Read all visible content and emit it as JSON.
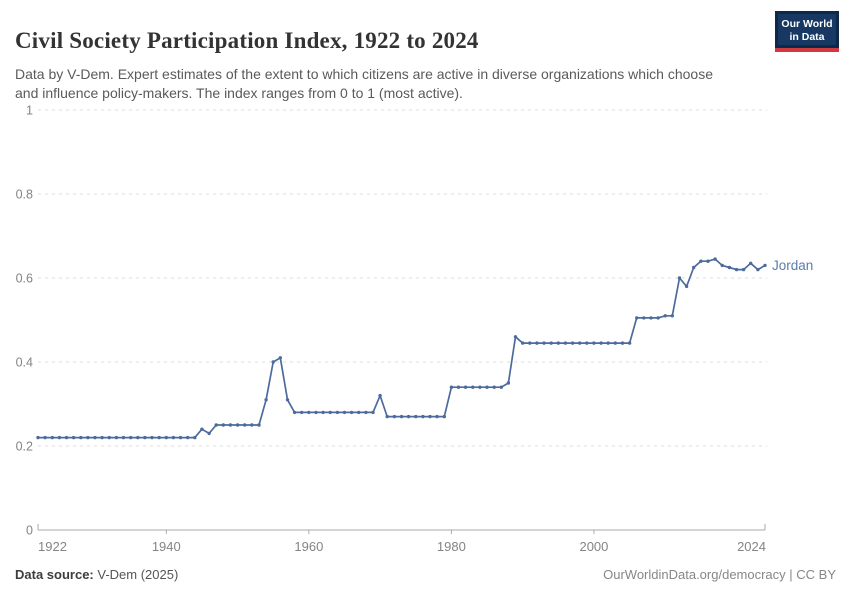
{
  "header": {
    "title": "Civil Society Participation Index, 1922 to 2024",
    "subtitle": "Data by V-Dem. Expert estimates of the extent to which citizens are active in diverse organizations which choose and influence policy-makers. The index ranges from 0 to 1 (most active).",
    "logo": {
      "line1": "Our World",
      "line2": "in Data"
    }
  },
  "chart_data": {
    "type": "line",
    "title": "Civil Society Participation Index, 1922 to 2024",
    "xlabel": "",
    "ylabel": "",
    "x_range": [
      1922,
      2024
    ],
    "ylim": [
      0,
      1
    ],
    "grid": "horizontal-dashed",
    "legend_position": "end-of-line-label",
    "x_ticks": [
      {
        "value": 1922,
        "label": "1922"
      },
      {
        "value": 1940,
        "label": "1940"
      },
      {
        "value": 1960,
        "label": "1960"
      },
      {
        "value": 1980,
        "label": "1980"
      },
      {
        "value": 2000,
        "label": "2000"
      },
      {
        "value": 2024,
        "label": "2024"
      }
    ],
    "y_ticks": [
      {
        "value": 0,
        "label": "0"
      },
      {
        "value": 0.2,
        "label": "0.2"
      },
      {
        "value": 0.4,
        "label": "0.4"
      },
      {
        "value": 0.6,
        "label": "0.6"
      },
      {
        "value": 0.8,
        "label": "0.8"
      },
      {
        "value": 1,
        "label": "1"
      }
    ],
    "series": [
      {
        "name": "Jordan",
        "color": "#4C6B9C",
        "label_color": "#5B7CAB",
        "years": [
          1922,
          1923,
          1924,
          1925,
          1926,
          1927,
          1928,
          1929,
          1930,
          1931,
          1932,
          1933,
          1934,
          1935,
          1936,
          1937,
          1938,
          1939,
          1940,
          1941,
          1942,
          1943,
          1944,
          1945,
          1946,
          1947,
          1948,
          1949,
          1950,
          1951,
          1952,
          1953,
          1954,
          1955,
          1956,
          1957,
          1958,
          1959,
          1960,
          1961,
          1962,
          1963,
          1964,
          1965,
          1966,
          1967,
          1968,
          1969,
          1970,
          1971,
          1972,
          1973,
          1974,
          1975,
          1976,
          1977,
          1978,
          1979,
          1980,
          1981,
          1982,
          1983,
          1984,
          1985,
          1986,
          1987,
          1988,
          1989,
          1990,
          1991,
          1992,
          1993,
          1994,
          1995,
          1996,
          1997,
          1998,
          1999,
          2000,
          2001,
          2002,
          2003,
          2004,
          2005,
          2006,
          2007,
          2008,
          2009,
          2010,
          2011,
          2012,
          2013,
          2014,
          2015,
          2016,
          2017,
          2018,
          2019,
          2020,
          2021,
          2022,
          2023,
          2024
        ],
        "values": [
          0.22,
          0.22,
          0.22,
          0.22,
          0.22,
          0.22,
          0.22,
          0.22,
          0.22,
          0.22,
          0.22,
          0.22,
          0.22,
          0.22,
          0.22,
          0.22,
          0.22,
          0.22,
          0.22,
          0.22,
          0.22,
          0.22,
          0.22,
          0.24,
          0.23,
          0.25,
          0.25,
          0.25,
          0.25,
          0.25,
          0.25,
          0.25,
          0.31,
          0.4,
          0.41,
          0.31,
          0.28,
          0.28,
          0.28,
          0.28,
          0.28,
          0.28,
          0.28,
          0.28,
          0.28,
          0.28,
          0.28,
          0.28,
          0.32,
          0.27,
          0.27,
          0.27,
          0.27,
          0.27,
          0.27,
          0.27,
          0.27,
          0.27,
          0.34,
          0.34,
          0.34,
          0.34,
          0.34,
          0.34,
          0.34,
          0.34,
          0.35,
          0.46,
          0.445,
          0.445,
          0.445,
          0.445,
          0.445,
          0.445,
          0.445,
          0.445,
          0.445,
          0.445,
          0.445,
          0.445,
          0.445,
          0.445,
          0.445,
          0.445,
          0.505,
          0.505,
          0.505,
          0.505,
          0.51,
          0.51,
          0.6,
          0.58,
          0.625,
          0.64,
          0.64,
          0.645,
          0.63,
          0.625,
          0.62,
          0.62,
          0.635,
          0.62,
          0.63
        ]
      }
    ]
  },
  "footer": {
    "source_label": "Data source:",
    "source_value": " V-Dem (2025)",
    "attribution": "OurWorldinData.org/democracy | CC BY"
  },
  "colors": {
    "series": "#4C6B9C",
    "entity_label": "#5B7CAB",
    "gridline": "#dedede",
    "axis_line": "#a9a9a9",
    "tick_label": "#848484",
    "title": "#333333",
    "subtitle": "#5a5a5a",
    "logo_navy": "#163862",
    "logo_border": "#0d2848",
    "logo_red": "#d0393e"
  }
}
